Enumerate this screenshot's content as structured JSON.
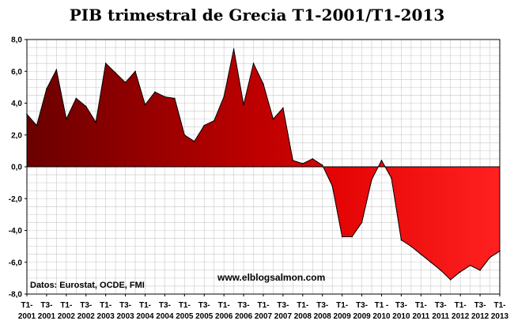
{
  "chart_data": {
    "type": "area",
    "title": "PIB trimestral de Grecia T1-2001/T1-2013",
    "source_note": "Datos: Eurostat, OCDE, FMI",
    "watermark": "www.elblogsalmon.com",
    "xlabel": "",
    "ylabel": "",
    "ylim": [
      -8,
      8
    ],
    "y_ticks": [
      "8,0",
      "6,0",
      "4,0",
      "2,0",
      "0,0",
      "-2,0",
      "-4,0",
      "-6,0",
      "-8,0"
    ],
    "x_ticks": [
      {
        "line1": "T1-",
        "line2": "2001"
      },
      {
        "line1": "T3-",
        "line2": "2001"
      },
      {
        "line1": "T1-",
        "line2": "2002"
      },
      {
        "line1": "T3-",
        "line2": "2002"
      },
      {
        "line1": "T1-",
        "line2": "2003"
      },
      {
        "line1": "T3-",
        "line2": "2003"
      },
      {
        "line1": "T1-",
        "line2": "2004"
      },
      {
        "line1": "T3-",
        "line2": "2004"
      },
      {
        "line1": "T1-",
        "line2": "2005"
      },
      {
        "line1": "T3-",
        "line2": "2005"
      },
      {
        "line1": "T1-",
        "line2": "2006"
      },
      {
        "line1": "T3-",
        "line2": "2006"
      },
      {
        "line1": "T1-",
        "line2": "2007"
      },
      {
        "line1": "T3-",
        "line2": "2007"
      },
      {
        "line1": "T1-",
        "line2": "2008"
      },
      {
        "line1": "T3-",
        "line2": "2008"
      },
      {
        "line1": "T1-",
        "line2": "2009"
      },
      {
        "line1": "T3-",
        "line2": "2009"
      },
      {
        "line1": "T1 -",
        "line2": "2010"
      },
      {
        "line1": "T3-",
        "line2": "2010"
      },
      {
        "line1": "T1-",
        "line2": "2011"
      },
      {
        "line1": "T3-",
        "line2": "2011"
      },
      {
        "line1": "T1-",
        "line2": "2012"
      },
      {
        "line1": "T3-",
        "line2": "2012"
      },
      {
        "line1": "T1-",
        "line2": "2013"
      }
    ],
    "grid": true,
    "colors": {
      "fill_light": "#ff0000",
      "fill_dark": "#6a0000",
      "line": "#000000",
      "grid": "#c8c8c8"
    },
    "series": [
      {
        "values": [
          3.3,
          2.6,
          4.9,
          6.1,
          3.0,
          4.3,
          3.8,
          2.8,
          6.5,
          5.9,
          5.3,
          6.0,
          3.9,
          4.7,
          4.4,
          4.3,
          2.0,
          1.6,
          2.6,
          2.9,
          4.4,
          7.4,
          3.9,
          6.5,
          5.2,
          3.0,
          3.7,
          0.4,
          0.2,
          0.5,
          0.1,
          -1.2,
          -4.4,
          -4.4,
          -3.5,
          -0.8,
          0.4,
          -0.7,
          -4.6,
          -5.0,
          -5.5,
          -6.0,
          -6.5,
          -7.1,
          -6.6,
          -6.2,
          -6.5,
          -5.7,
          -5.3
        ]
      }
    ]
  }
}
